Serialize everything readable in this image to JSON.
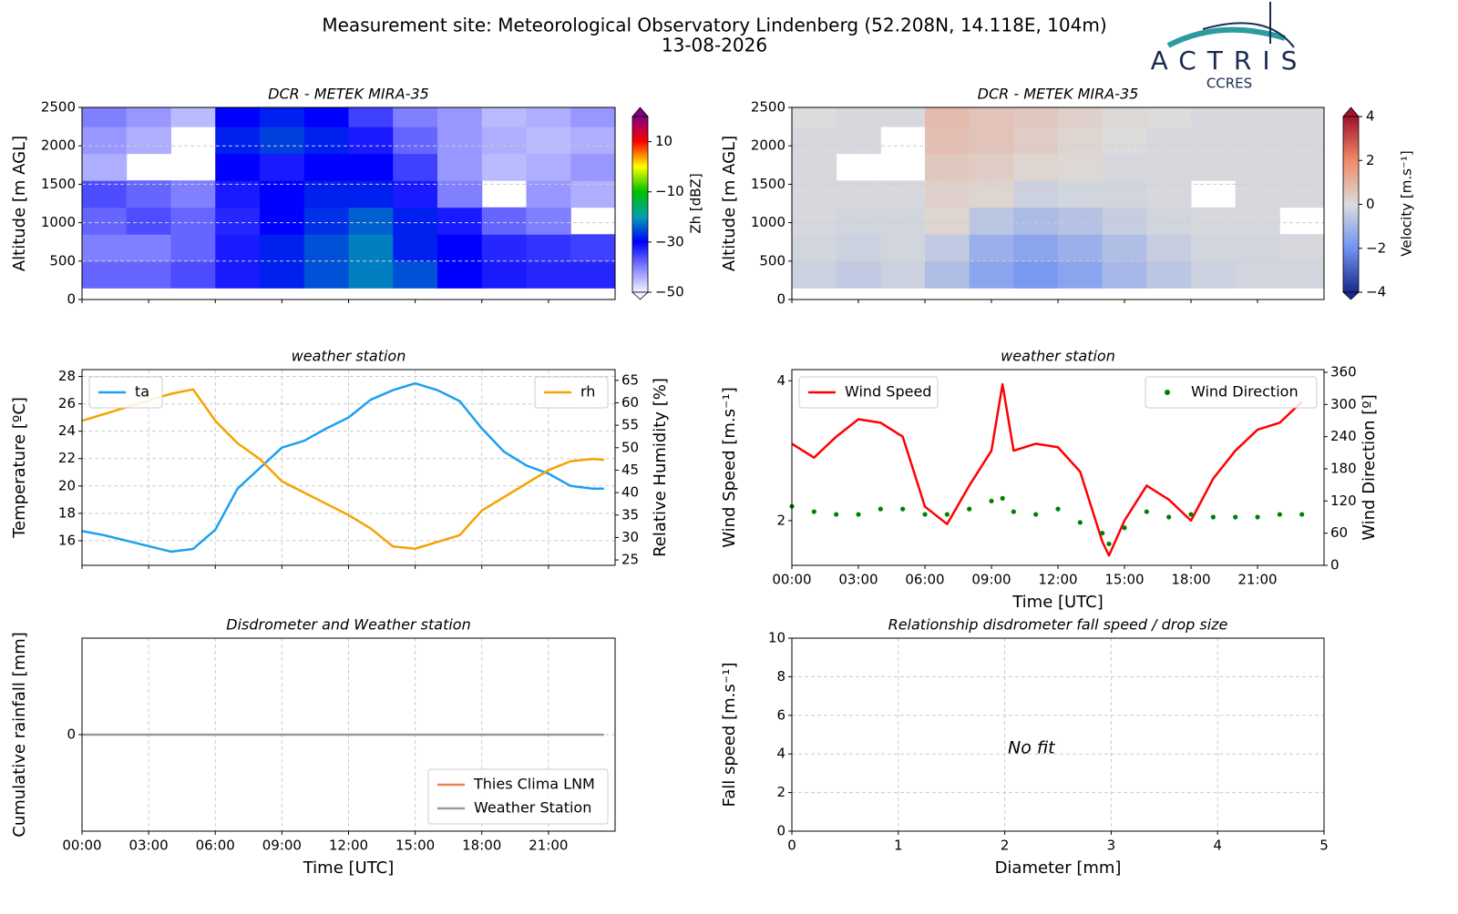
{
  "header": {
    "title": "Measurement site: Meteorological Observatory Lindenberg (52.208N, 14.118E, 104m)",
    "date": "13-08-2026",
    "logo": "ACTRIS",
    "logo_sub": "CCRES"
  },
  "chart_data": [
    {
      "type": "heatmap",
      "title": "DCR - METEK MIRA-35",
      "ylabel": "Altitude [m AGL]",
      "colorbar_label": "Zh [dBZ]",
      "x_edges": [
        0,
        2,
        4,
        6,
        8,
        10,
        12,
        14,
        16,
        18,
        20,
        22,
        24
      ],
      "y_edges": [
        150,
        500,
        850,
        1200,
        1550,
        1900,
        2250,
        2500
      ],
      "z": [
        [
          -38,
          -38,
          -36,
          -32,
          -28,
          -25,
          -22,
          -25,
          -30,
          -32,
          -33,
          -33
        ],
        [
          -40,
          -40,
          -38,
          -32,
          -28,
          -25,
          -22,
          -28,
          -30,
          -33,
          -34,
          -35
        ],
        [
          -38,
          -36,
          -38,
          -33,
          -30,
          -27,
          -24,
          -28,
          -32,
          -38,
          -40,
          null
        ],
        [
          -36,
          -38,
          -40,
          -32,
          -30,
          -28,
          -28,
          -32,
          -40,
          null,
          -42,
          -44
        ],
        [
          -44,
          null,
          null,
          -30,
          -32,
          -30,
          -30,
          -35,
          -42,
          -45,
          -44,
          -42
        ],
        [
          -42,
          -44,
          null,
          -28,
          -26,
          -28,
          -32,
          -38,
          -42,
          -44,
          -45,
          -44
        ],
        [
          -40,
          -42,
          -45,
          -30,
          -28,
          -30,
          -35,
          -40,
          -42,
          -45,
          -44,
          -42
        ]
      ],
      "xlim": [
        0,
        24
      ],
      "xticks": [
        0,
        3,
        6,
        9,
        12,
        15,
        18,
        21
      ],
      "xtick_labels": false,
      "ylim": [
        0,
        2500
      ],
      "yticks": [
        0,
        500,
        1000,
        1500,
        2000,
        2500
      ],
      "zlim": [
        -50,
        20
      ],
      "zticks": [
        {
          "value": -50,
          "label": "−50"
        },
        {
          "value": -30,
          "label": "−30"
        },
        {
          "value": -10,
          "label": "−10"
        },
        10
      ],
      "colors": [
        "#f4f4ff",
        "#8080ff",
        "#0000ff",
        "#00a0b0",
        "#00c000",
        "#ffff00",
        "#ff0000",
        "#800080"
      ],
      "grid": true
    },
    {
      "type": "heatmap",
      "title": "DCR - METEK MIRA-35",
      "ylabel": "Altitude [m AGL]",
      "colorbar_label": "Velocity [m.s⁻¹]",
      "x_edges": [
        0,
        2,
        4,
        6,
        8,
        10,
        12,
        14,
        16,
        18,
        20,
        22,
        24
      ],
      "y_edges": [
        150,
        500,
        850,
        1200,
        1550,
        1900,
        2250,
        2500
      ],
      "z": [
        [
          -0.3,
          -0.5,
          -0.3,
          -0.8,
          -1.5,
          -1.8,
          -1.5,
          -1.0,
          -0.6,
          -0.3,
          -0.2,
          -0.2
        ],
        [
          -0.2,
          -0.3,
          -0.2,
          -0.5,
          -1.2,
          -1.5,
          -1.2,
          -0.8,
          -0.4,
          -0.2,
          -0.2,
          -0.1
        ],
        [
          -0.1,
          -0.2,
          -0.2,
          0.2,
          -0.6,
          -0.9,
          -0.7,
          -0.4,
          -0.2,
          -0.1,
          -0.1,
          null
        ],
        [
          -0.1,
          -0.1,
          -0.1,
          0.3,
          0.2,
          -0.3,
          -0.2,
          -0.2,
          -0.1,
          null,
          -0.1,
          -0.1
        ],
        [
          -0.1,
          null,
          null,
          0.5,
          0.4,
          0.2,
          0.1,
          -0.1,
          -0.1,
          -0.1,
          -0.1,
          -0.1
        ],
        [
          -0.1,
          -0.1,
          null,
          0.7,
          0.6,
          0.4,
          0.2,
          0.0,
          -0.1,
          -0.1,
          -0.1,
          -0.1
        ],
        [
          0,
          -0.1,
          -0.1,
          0.8,
          0.6,
          0.5,
          0.3,
          0.1,
          0,
          -0.1,
          -0.1,
          -0.1
        ]
      ],
      "xlim": [
        0,
        24
      ],
      "xticks": [
        0,
        3,
        6,
        9,
        12,
        15,
        18,
        21
      ],
      "xtick_labels": false,
      "ylim": [
        0,
        2500
      ],
      "yticks": [
        0,
        500,
        1000,
        1500,
        2000,
        2500
      ],
      "zlim": [
        -4,
        4
      ],
      "zticks": [
        {
          "value": -4,
          "label": "−4"
        },
        {
          "value": -2,
          "label": "−2"
        },
        0,
        2,
        4
      ],
      "colors": [
        "#1a2a8c",
        "#6f92f3",
        "#dcdcdc",
        "#f08a68",
        "#a2122a"
      ],
      "grid": true
    },
    {
      "type": "line",
      "title": "weather station",
      "ylabel": "Temperature [ºC]",
      "y2label": "Relative Humidity [%]",
      "x": [
        0,
        1,
        2,
        3,
        4,
        5,
        6,
        7,
        8,
        9,
        10,
        11,
        12,
        13,
        14,
        15,
        16,
        17,
        18,
        19,
        20,
        21,
        22,
        23,
        23.5
      ],
      "series": [
        {
          "name": "ta",
          "color": "#1ca0f0",
          "values": [
            16.7,
            16.4,
            16.0,
            15.6,
            15.2,
            15.4,
            16.8,
            19.8,
            21.3,
            22.8,
            23.3,
            24.2,
            25.0,
            26.3,
            27.0,
            27.5,
            27.0,
            26.2,
            24.2,
            22.5,
            21.5,
            20.9,
            20.0,
            19.8,
            19.8
          ]
        },
        {
          "name": "rh",
          "color": "#f5a300",
          "axis": "y2",
          "values": [
            56,
            57.5,
            59,
            60.5,
            62,
            63,
            56,
            51,
            47.5,
            42.5,
            40,
            37.5,
            35,
            32,
            28,
            27.5,
            29,
            30.5,
            36,
            39,
            42,
            45,
            47,
            47.5,
            47.3
          ]
        }
      ],
      "xlim": [
        0,
        24
      ],
      "xticks": [
        0,
        3,
        6,
        9,
        12,
        15,
        18,
        21
      ],
      "xtick_labels": false,
      "ylim": [
        14.2,
        28.5
      ],
      "yticks": [
        16,
        18,
        20,
        22,
        24,
        26,
        28
      ],
      "y2lim": [
        23.8,
        67.4
      ],
      "y2ticks": [
        25,
        30,
        35,
        40,
        45,
        50,
        55,
        60,
        65
      ],
      "legend": "upper left",
      "legend2": "upper right",
      "grid": true
    },
    {
      "type": "line",
      "title": "weather station",
      "xlabel": "Time [UTC]",
      "ylabel": "Wind Speed [m.s⁻¹]",
      "y2label": "Wind Direction [º]",
      "x": [
        0,
        1,
        2,
        3,
        4,
        5,
        6,
        7,
        8,
        9,
        9.5,
        10,
        11,
        12,
        13,
        14,
        14.3,
        15,
        16,
        17,
        18,
        19,
        20,
        21,
        22,
        23
      ],
      "series": [
        {
          "name": "Wind Speed",
          "color": "#ff0000",
          "values": [
            3.1,
            2.9,
            3.2,
            3.45,
            3.4,
            3.2,
            2.2,
            1.95,
            2.5,
            3.0,
            3.95,
            3.0,
            3.1,
            3.05,
            2.7,
            1.7,
            1.5,
            2.0,
            2.5,
            2.3,
            2.0,
            2.6,
            3.0,
            3.3,
            3.4,
            3.7
          ]
        },
        {
          "name": "Wind Direction",
          "color": "#008000",
          "type": "scatter",
          "axis": "y2",
          "values": [
            110,
            100,
            95,
            95,
            105,
            105,
            95,
            95,
            105,
            120,
            125,
            100,
            95,
            105,
            80,
            60,
            40,
            70,
            100,
            90,
            95,
            90,
            90,
            90,
            95,
            95
          ]
        }
      ],
      "xlim": [
        0,
        24
      ],
      "xticks": [
        {
          "value": 0,
          "label": "00:00"
        },
        {
          "value": 3,
          "label": "03:00"
        },
        {
          "value": 6,
          "label": "06:00"
        },
        {
          "value": 9,
          "label": "09:00"
        },
        {
          "value": 12,
          "label": "12:00"
        },
        {
          "value": 15,
          "label": "15:00"
        },
        {
          "value": 18,
          "label": "18:00"
        },
        {
          "value": 21,
          "label": "21:00"
        }
      ],
      "ylim": [
        1.36,
        4.16
      ],
      "yticks": [
        2,
        4
      ],
      "y2lim": [
        0,
        365
      ],
      "y2ticks": [
        0,
        60,
        120,
        180,
        240,
        300,
        360
      ],
      "legend": "upper left",
      "legend2": "upper right",
      "grid": false
    },
    {
      "type": "line",
      "title": "Disdrometer and Weather station",
      "xlabel": "Time [UTC]",
      "ylabel": "Cumulative rainfall [mm]",
      "x": [
        0,
        23.5
      ],
      "series": [
        {
          "name": "Thies Clima LNM",
          "color": "#f08050",
          "values": [
            null,
            null
          ]
        },
        {
          "name": "Weather Station",
          "color": "#999999",
          "values": [
            0,
            0
          ]
        }
      ],
      "xlim": [
        0,
        24
      ],
      "xticks": [
        {
          "value": 0,
          "label": "00:00"
        },
        {
          "value": 3,
          "label": "03:00"
        },
        {
          "value": 6,
          "label": "06:00"
        },
        {
          "value": 9,
          "label": "09:00"
        },
        {
          "value": 12,
          "label": "12:00"
        },
        {
          "value": 15,
          "label": "15:00"
        },
        {
          "value": 18,
          "label": "18:00"
        },
        {
          "value": 21,
          "label": "21:00"
        }
      ],
      "ylim": [
        -1,
        1
      ],
      "yticks": [
        0
      ],
      "legend": "lower right",
      "grid": true
    },
    {
      "type": "scatter",
      "title": "Relationship disdrometer fall speed / drop size",
      "xlabel": "Diameter [mm]",
      "ylabel": "Fall speed [m.s⁻¹]",
      "annotation": "No fit",
      "xlim": [
        0,
        5
      ],
      "xticks": [
        0,
        1,
        2,
        3,
        4,
        5
      ],
      "ylim": [
        0,
        10
      ],
      "yticks": [
        0,
        2,
        4,
        6,
        8,
        10
      ],
      "grid": true
    }
  ]
}
